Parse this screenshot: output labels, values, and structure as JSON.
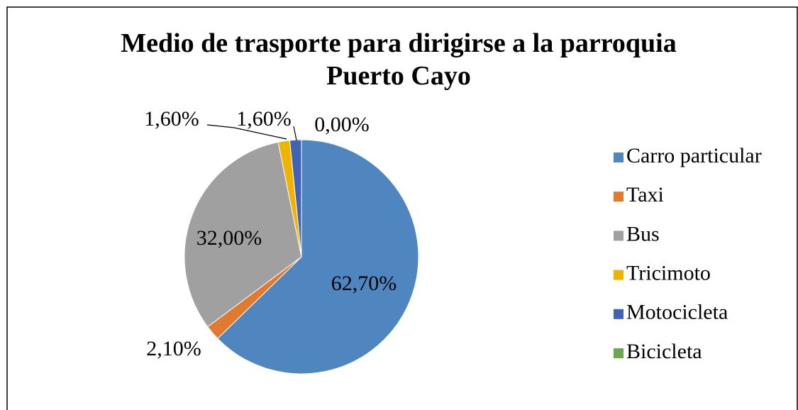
{
  "chart_data": {
    "type": "pie",
    "title": "Medio de trasporte para dirigirse a la parroquia Puerto Cayo",
    "categories": [
      "Carro particular",
      "Taxi",
      "Bus",
      "Tricimoto",
      "Motocicleta",
      "Bicicleta"
    ],
    "values": [
      62.7,
      2.1,
      32.0,
      1.6,
      1.6,
      0.0
    ],
    "value_labels": [
      "62,70%",
      "2,10%",
      "32,00%",
      "1,60%",
      "1,60%",
      "0,00%"
    ],
    "colors": [
      "#4f86c0",
      "#e07a2e",
      "#a0a0a0",
      "#f0b400",
      "#3f64b4",
      "#6aa84f"
    ],
    "legend": "right"
  }
}
